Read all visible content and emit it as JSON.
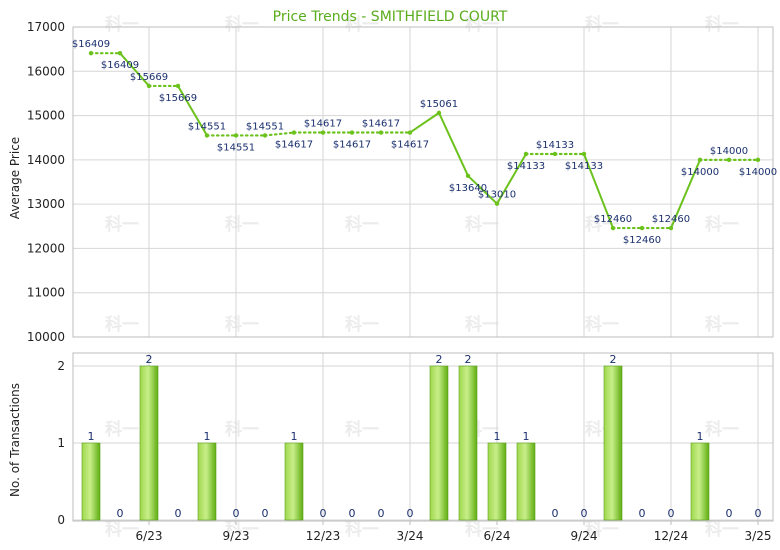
{
  "colors": {
    "line": "#6cc21c",
    "title": "#5aac1c",
    "label": "#1a2f6e",
    "bar_light": "#c8ee8a",
    "bar_dark": "#5fae12",
    "grid": "#d6d6d6",
    "frame": "#bdbdbd"
  },
  "watermark_text": "科一",
  "chart_data": [
    {
      "type": "line",
      "title": "Price Trends - SMITHFIELD COURT",
      "ylabel": "Average Price",
      "ylim": [
        10000,
        17000
      ],
      "yticks": [
        "10000",
        "11000",
        "12000",
        "13000",
        "14000",
        "15000",
        "16000",
        "17000"
      ],
      "grid": true,
      "x_month_index": [
        0,
        1,
        2,
        3,
        4,
        5,
        6,
        7,
        8,
        9,
        10,
        11,
        12,
        13,
        14,
        15,
        16,
        17,
        18,
        19,
        20,
        21,
        22,
        23
      ],
      "values": [
        16409,
        16409,
        15669,
        15669,
        14551,
        14551,
        14551,
        14617,
        14617,
        14617,
        14617,
        14617,
        15061,
        13640,
        13010,
        14133,
        14133,
        14133,
        12460,
        12460,
        12460,
        14000,
        14000,
        14000
      ],
      "labels": [
        "$16409",
        "$16409",
        "$15669",
        "$15669",
        "$14551",
        "$14551",
        "$14551",
        "$14617",
        "$14617",
        "$14617",
        "$14617",
        "$14617",
        "$15061",
        "$13640",
        "$13010",
        "$14133",
        "$14133",
        "$14133",
        "$12460",
        "$12460",
        "$12460",
        "$14000",
        "$14000",
        "$14000"
      ],
      "dotted_segments": [
        0,
        2,
        4,
        5,
        6,
        7,
        8,
        9,
        10,
        15,
        16,
        18,
        19,
        21,
        22
      ]
    },
    {
      "type": "bar",
      "ylabel": "No. of Transactions",
      "ylim": [
        0,
        2
      ],
      "yticks": [
        "0",
        "1",
        "2"
      ],
      "grid": true,
      "x_ticks": [
        {
          "month_index": 2,
          "label": "6/23"
        },
        {
          "month_index": 5,
          "label": "9/23"
        },
        {
          "month_index": 8,
          "label": "12/23"
        },
        {
          "month_index": 11,
          "label": "3/24"
        },
        {
          "month_index": 14,
          "label": "6/24"
        },
        {
          "month_index": 17,
          "label": "9/24"
        },
        {
          "month_index": 20,
          "label": "12/24"
        },
        {
          "month_index": 23,
          "label": "3/25"
        }
      ],
      "values": [
        1,
        0,
        2,
        0,
        1,
        0,
        0,
        1,
        0,
        0,
        0,
        0,
        2,
        2,
        1,
        1,
        0,
        0,
        2,
        0,
        0,
        1,
        0,
        0
      ]
    }
  ]
}
